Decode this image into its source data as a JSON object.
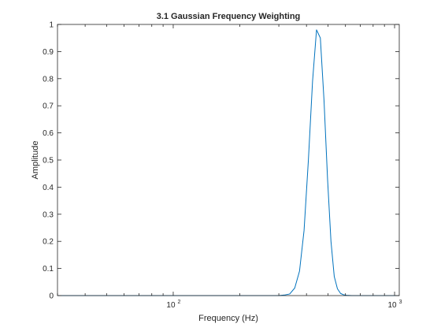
{
  "chart_data": {
    "type": "line",
    "title": "3.1 Gaussian Frequency Weighting",
    "xlabel": "Frequency (Hz)",
    "ylabel": "Amplitude",
    "xscale": "log",
    "xlim": [
      30,
      1050
    ],
    "ylim": [
      0,
      1
    ],
    "grid": false,
    "legend": "none",
    "line_color": "#0072BD",
    "x_tick_values": [
      100,
      1000
    ],
    "x_tick_labels": [
      {
        "base": "10",
        "exp": "2"
      },
      {
        "base": "10",
        "exp": "3"
      }
    ],
    "y_tick_values": [
      0,
      0.1,
      0.2,
      0.3,
      0.4,
      0.5,
      0.6,
      0.7,
      0.8,
      0.9,
      1
    ],
    "y_tick_labels": [
      "0",
      "0.1",
      "0.2",
      "0.3",
      "0.4",
      "0.5",
      "0.6",
      "0.7",
      "0.8",
      "0.9",
      "1"
    ],
    "series": [
      {
        "x": [
          30,
          100,
          300,
          318,
          336,
          354,
          372,
          390,
          408,
          426,
          444,
          462,
          480,
          498,
          516,
          534,
          552,
          570,
          588,
          606,
          640,
          700,
          1000,
          1050
        ],
        "y": [
          0,
          0,
          0,
          0.002,
          0.006,
          0.028,
          0.09,
          0.24,
          0.5,
          0.79,
          0.98,
          0.95,
          0.72,
          0.43,
          0.2,
          0.07,
          0.025,
          0.008,
          0.003,
          0.001,
          0,
          0,
          0,
          0
        ]
      }
    ]
  }
}
